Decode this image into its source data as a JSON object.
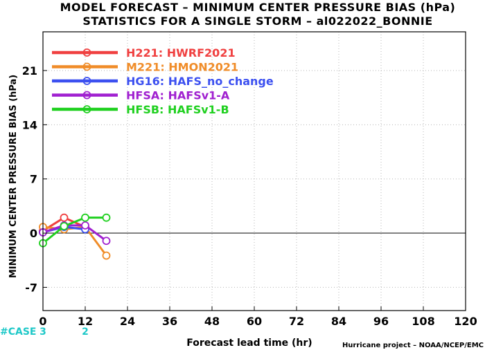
{
  "chart_data": {
    "type": "line",
    "title": "MODEL FORECAST – MINIMUM CENTER PRESSURE BIAS (hPa)",
    "subtitle": "STATISTICS FOR A SINGLE STORM – al022022_BONNIE",
    "xlabel": "Forecast lead time (hr)",
    "ylabel": "MINIMUM CENTER PRESSURE BIAS (hPa)",
    "xlim": [
      0,
      120
    ],
    "ylim": [
      -10,
      26
    ],
    "xticks": [
      0,
      12,
      24,
      36,
      48,
      60,
      72,
      84,
      96,
      108,
      120
    ],
    "yticks": [
      -7,
      0,
      7,
      14,
      21
    ],
    "grid": true,
    "legend_position": "top-left",
    "case_label": "#CASE",
    "case_counts": [
      {
        "x": 0,
        "n": "3"
      },
      {
        "x": 12,
        "n": "2"
      }
    ],
    "credit": "Hurricane project – NOAA/NCEP/EMC",
    "series": [
      {
        "name": "H221: HWRF2021",
        "color": "#f04040",
        "x": [
          0,
          6,
          12
        ],
        "y": [
          0.3,
          2.0,
          0.8
        ]
      },
      {
        "name": "M221: HMON2021",
        "color": "#f08c28",
        "x": [
          0,
          6,
          12,
          18
        ],
        "y": [
          0.8,
          0.5,
          0.8,
          -2.9
        ]
      },
      {
        "name": "HG16: HAFS_no_change",
        "color": "#3c50f0",
        "x": [
          0,
          6,
          12
        ],
        "y": [
          0.1,
          0.8,
          0.5
        ]
      },
      {
        "name": "HFSA: HAFSv1-A",
        "color": "#a020d0",
        "x": [
          0,
          6,
          12,
          18
        ],
        "y": [
          0.1,
          1.0,
          1.0,
          -1.0
        ]
      },
      {
        "name": "HFSB: HAFSv1-B",
        "color": "#20d020",
        "x": [
          0,
          6,
          12,
          18
        ],
        "y": [
          -1.3,
          0.9,
          2.0,
          2.0
        ]
      }
    ]
  }
}
